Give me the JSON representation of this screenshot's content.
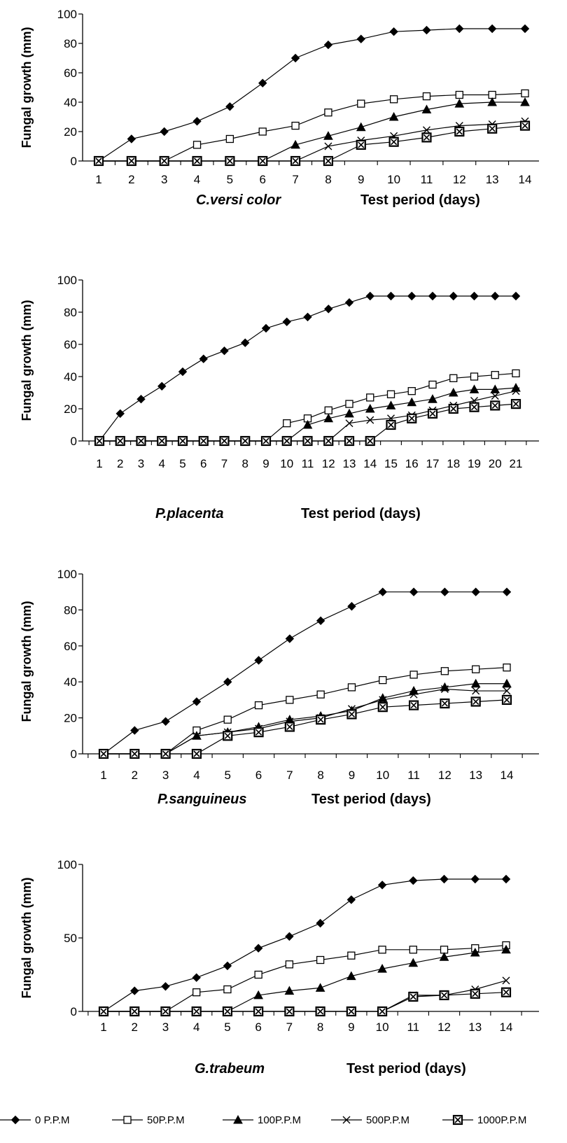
{
  "chart_data": [
    {
      "type": "line",
      "species": "C.versi color",
      "xlabel": "Test period (days)",
      "ylabel": "Fungal growth (mm)",
      "ylim": [
        0,
        100
      ],
      "yticks": [
        "0",
        "20",
        "40",
        "60",
        "80",
        "100"
      ],
      "x": [
        1,
        2,
        3,
        4,
        5,
        6,
        7,
        8,
        9,
        10,
        11,
        12,
        13,
        14
      ],
      "xtick_labels": [
        "1",
        "2",
        "3",
        "4",
        "5",
        "6",
        "7",
        "8",
        "9",
        "10",
        "11",
        "12",
        "13",
        "14"
      ],
      "series": [
        {
          "name": "0 P.P.M",
          "values": [
            0,
            15,
            20,
            27,
            37,
            53,
            70,
            79,
            83,
            88,
            89,
            90,
            90,
            90
          ]
        },
        {
          "name": "50P.P.M",
          "values": [
            0,
            0,
            0,
            11,
            15,
            20,
            24,
            33,
            39,
            42,
            44,
            45,
            45,
            46
          ]
        },
        {
          "name": "100P.P.M",
          "values": [
            0,
            0,
            0,
            0,
            0,
            0,
            11,
            17,
            23,
            30,
            35,
            39,
            40,
            40
          ]
        },
        {
          "name": "500P.P.M",
          "values": [
            0,
            0,
            0,
            0,
            0,
            0,
            0,
            10,
            14,
            17,
            21,
            24,
            25,
            27
          ]
        },
        {
          "name": "1000P.P.M",
          "values": [
            0,
            0,
            0,
            0,
            0,
            0,
            0,
            0,
            11,
            13,
            16,
            20,
            22,
            24
          ]
        }
      ]
    },
    {
      "type": "line",
      "species": "P.placenta",
      "xlabel": "Test period (days)",
      "ylabel": "Fungal growth (mm)",
      "ylim": [
        0,
        100
      ],
      "yticks": [
        "0",
        "20",
        "40",
        "60",
        "80",
        "100"
      ],
      "x": [
        1,
        2,
        3,
        4,
        5,
        6,
        7,
        8,
        9,
        10,
        11,
        12,
        13,
        14,
        15,
        16,
        17,
        18,
        19,
        20,
        21
      ],
      "xtick_labels": [
        "1",
        "2",
        "3",
        "4",
        "5",
        "6",
        "7",
        "8",
        "9",
        "10",
        "11",
        "12",
        "13",
        "14",
        "15",
        "16",
        "17",
        "18",
        "19",
        "20",
        "21"
      ],
      "series": [
        {
          "name": "0 P.P.M",
          "values": [
            0,
            17,
            26,
            34,
            43,
            51,
            56,
            61,
            70,
            74,
            77,
            82,
            86,
            90,
            90,
            90,
            90,
            90,
            90,
            90,
            90
          ]
        },
        {
          "name": "50P.P.M",
          "values": [
            0,
            0,
            0,
            0,
            0,
            0,
            0,
            0,
            0,
            11,
            14,
            19,
            23,
            27,
            29,
            31,
            35,
            39,
            40,
            41,
            42
          ]
        },
        {
          "name": "100P.P.M",
          "values": [
            0,
            0,
            0,
            0,
            0,
            0,
            0,
            0,
            0,
            0,
            10,
            14,
            17,
            20,
            22,
            24,
            26,
            30,
            32,
            32,
            33
          ]
        },
        {
          "name": "500P.P.M",
          "values": [
            0,
            0,
            0,
            0,
            0,
            0,
            0,
            0,
            0,
            0,
            0,
            0,
            11,
            13,
            14,
            16,
            19,
            22,
            25,
            28,
            31
          ]
        },
        {
          "name": "1000P.P.M",
          "values": [
            0,
            0,
            0,
            0,
            0,
            0,
            0,
            0,
            0,
            0,
            0,
            0,
            0,
            0,
            10,
            14,
            17,
            20,
            21,
            22,
            23
          ]
        }
      ]
    },
    {
      "type": "line",
      "species": "P.sanguineus",
      "xlabel": "Test period (days)",
      "ylabel": "Fungal growth (mm)",
      "ylim": [
        0,
        100
      ],
      "yticks": [
        "0",
        "20",
        "40",
        "60",
        "80",
        "100"
      ],
      "x": [
        1,
        2,
        3,
        4,
        5,
        6,
        7,
        8,
        9,
        10,
        11,
        12,
        13,
        14
      ],
      "xtick_labels": [
        "1",
        "2",
        "3",
        "4",
        "5",
        "6",
        "7",
        "8",
        "9",
        "10",
        "11",
        "12",
        "13",
        "14"
      ],
      "series": [
        {
          "name": "0 P.P.M",
          "values": [
            0,
            13,
            18,
            29,
            40,
            52,
            64,
            74,
            82,
            90,
            90,
            90,
            90,
            90
          ]
        },
        {
          "name": "50P.P.M",
          "values": [
            0,
            0,
            0,
            13,
            19,
            27,
            30,
            33,
            37,
            41,
            44,
            46,
            47,
            48
          ]
        },
        {
          "name": "100P.P.M",
          "values": [
            0,
            0,
            0,
            10,
            12,
            15,
            19,
            21,
            24,
            31,
            35,
            37,
            39,
            39
          ]
        },
        {
          "name": "500P.P.M",
          "values": [
            0,
            0,
            0,
            10,
            12,
            14,
            18,
            20,
            25,
            30,
            33,
            36,
            35,
            35
          ]
        },
        {
          "name": "1000P.P.M",
          "values": [
            0,
            0,
            0,
            0,
            10,
            12,
            15,
            19,
            22,
            26,
            27,
            28,
            29,
            30
          ]
        }
      ]
    },
    {
      "type": "line",
      "species": "G.trabeum",
      "xlabel": "Test period (days)",
      "ylabel": "Fungal growth (mm)",
      "ylim": [
        0,
        100
      ],
      "yticks": [
        "0",
        "50",
        "100"
      ],
      "x": [
        1,
        2,
        3,
        4,
        5,
        6,
        7,
        8,
        9,
        10,
        11,
        12,
        13,
        14
      ],
      "xtick_labels": [
        "1",
        "2",
        "3",
        "4",
        "5",
        "6",
        "7",
        "8",
        "9",
        "10",
        "11",
        "12",
        "13",
        "14"
      ],
      "series": [
        {
          "name": "0 P.P.M",
          "values": [
            0,
            14,
            17,
            23,
            31,
            43,
            51,
            60,
            76,
            86,
            89,
            90,
            90,
            90
          ]
        },
        {
          "name": "50P.P.M",
          "values": [
            0,
            0,
            0,
            13,
            15,
            25,
            32,
            35,
            38,
            42,
            42,
            42,
            43,
            45
          ]
        },
        {
          "name": "100P.P.M",
          "values": [
            0,
            0,
            0,
            0,
            0,
            11,
            14,
            16,
            24,
            29,
            33,
            37,
            40,
            42
          ]
        },
        {
          "name": "500P.P.M",
          "values": [
            0,
            0,
            0,
            0,
            0,
            0,
            0,
            0,
            0,
            0,
            11,
            11,
            15,
            21
          ]
        },
        {
          "name": "1000P.P.M",
          "values": [
            0,
            0,
            0,
            0,
            0,
            0,
            0,
            0,
            0,
            0,
            10,
            11,
            12,
            13
          ]
        }
      ]
    }
  ],
  "legend": [
    {
      "label": "0 P.P.M",
      "marker": "filled-diamond"
    },
    {
      "label": "50P.P.M",
      "marker": "open-square"
    },
    {
      "label": "100P.P.M",
      "marker": "filled-triangle"
    },
    {
      "label": "500P.P.M",
      "marker": "x-mark"
    },
    {
      "label": "1000P.P.M",
      "marker": "boxed-x-square"
    }
  ]
}
